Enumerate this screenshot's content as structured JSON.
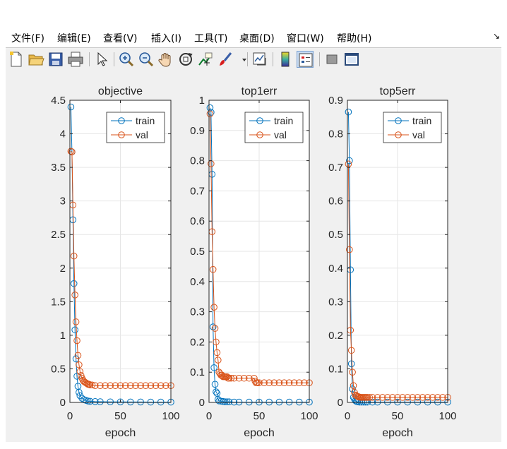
{
  "menu": {
    "items": [
      "文件(F)",
      "编辑(E)",
      "查看(V)",
      "插入(I)",
      "工具(T)",
      "桌面(D)",
      "窗口(W)",
      "帮助(H)"
    ],
    "arrow": "↘"
  },
  "toolbar": {
    "icons": [
      "new-file-icon",
      "open-folder-icon",
      "save-icon",
      "print-icon",
      "pointer-icon",
      "zoom-in-icon",
      "zoom-out-icon",
      "pan-hand-icon",
      "rotate-3d-icon",
      "data-cursor-icon",
      "brush-icon",
      "link-plot-icon",
      "colorbar-icon",
      "legend-icon",
      "hide-plot-tools-icon",
      "show-plot-tools-icon"
    ]
  },
  "colors": {
    "train": "#0072bd",
    "val": "#d95319",
    "axis": "#262626",
    "grid": "#e6e6e6",
    "figure_bg": "#f0f0f0"
  },
  "chart_data": [
    {
      "type": "line",
      "title": "objective",
      "xlabel": "epoch",
      "ylabel": "",
      "xlim": [
        0,
        100
      ],
      "ylim": [
        0,
        4.5
      ],
      "xticks": [
        0,
        50,
        100
      ],
      "yticks": [
        0,
        0.5,
        1,
        1.5,
        2,
        2.5,
        3,
        3.5,
        4,
        4.5
      ],
      "ytick_labels": [
        "0",
        "0.5",
        "1",
        "1.5",
        "2",
        "2.5",
        "3",
        "3.5",
        "4",
        "4.5"
      ],
      "grid": true,
      "legend": "top-right",
      "marker": "circle",
      "series": [
        {
          "name": "train",
          "x": [
            1,
            2,
            3,
            4,
            5,
            6,
            7,
            8,
            9,
            10,
            12,
            14,
            16,
            18,
            20,
            25,
            30,
            40,
            50,
            60,
            70,
            80,
            90,
            100
          ],
          "y": [
            4.4,
            3.73,
            2.72,
            1.77,
            1.08,
            0.65,
            0.39,
            0.24,
            0.15,
            0.1,
            0.06,
            0.04,
            0.03,
            0.02,
            0.016,
            0.012,
            0.01,
            0.008,
            0.007,
            0.006,
            0.006,
            0.005,
            0.005,
            0.005
          ]
        },
        {
          "name": "val",
          "x": [
            1,
            2,
            3,
            4,
            5,
            6,
            7,
            8,
            9,
            10,
            11,
            12,
            13,
            14,
            15,
            16,
            17,
            18,
            19,
            20,
            22,
            25,
            30,
            35,
            40,
            45,
            50,
            55,
            60,
            65,
            70,
            75,
            80,
            85,
            90,
            95,
            100
          ],
          "y": [
            3.74,
            3.73,
            2.94,
            2.18,
            1.6,
            1.2,
            0.92,
            0.7,
            0.56,
            0.46,
            0.4,
            0.36,
            0.33,
            0.31,
            0.3,
            0.29,
            0.28,
            0.27,
            0.27,
            0.26,
            0.26,
            0.25,
            0.25,
            0.25,
            0.25,
            0.25,
            0.25,
            0.25,
            0.25,
            0.25,
            0.25,
            0.25,
            0.25,
            0.25,
            0.25,
            0.25,
            0.25
          ]
        }
      ]
    },
    {
      "type": "line",
      "title": "top1err",
      "xlabel": "epoch",
      "ylabel": "",
      "xlim": [
        0,
        100
      ],
      "ylim": [
        0,
        1
      ],
      "xticks": [
        0,
        50,
        100
      ],
      "yticks": [
        0,
        0.1,
        0.2,
        0.3,
        0.4,
        0.5,
        0.6,
        0.7,
        0.8,
        0.9,
        1
      ],
      "ytick_labels": [
        "0",
        "0.1",
        "0.2",
        "0.3",
        "0.4",
        "0.5",
        "0.6",
        "0.7",
        "0.8",
        "0.9",
        "1"
      ],
      "grid": true,
      "legend": "top-right",
      "marker": "circle",
      "series": [
        {
          "name": "train",
          "x": [
            1,
            2,
            3,
            4,
            5,
            6,
            7,
            8,
            9,
            10,
            12,
            14,
            16,
            18,
            20,
            25,
            30,
            40,
            50,
            60,
            70,
            80,
            90,
            100
          ],
          "y": [
            0.975,
            0.96,
            0.755,
            0.25,
            0.115,
            0.06,
            0.035,
            0.03,
            0.01,
            0.005,
            0.004,
            0.003,
            0.002,
            0.002,
            0.002,
            0.001,
            0.001,
            0.001,
            0.001,
            0.001,
            0.001,
            0.001,
            0.001,
            0.001
          ]
        },
        {
          "name": "val",
          "x": [
            1,
            2,
            3,
            4,
            5,
            6,
            7,
            8,
            9,
            10,
            11,
            12,
            13,
            14,
            15,
            16,
            17,
            18,
            19,
            20,
            22,
            25,
            30,
            35,
            40,
            45,
            46,
            47,
            48,
            50,
            55,
            60,
            65,
            70,
            75,
            80,
            85,
            90,
            95,
            100
          ],
          "y": [
            0.955,
            0.79,
            0.565,
            0.44,
            0.315,
            0.245,
            0.2,
            0.165,
            0.14,
            0.1,
            0.095,
            0.09,
            0.09,
            0.085,
            0.085,
            0.085,
            0.085,
            0.085,
            0.08,
            0.08,
            0.08,
            0.08,
            0.08,
            0.08,
            0.08,
            0.08,
            0.07,
            0.065,
            0.065,
            0.065,
            0.065,
            0.065,
            0.065,
            0.065,
            0.065,
            0.065,
            0.065,
            0.065,
            0.065,
            0.065
          ]
        }
      ]
    },
    {
      "type": "line",
      "title": "top5err",
      "xlabel": "epoch",
      "ylabel": "",
      "xlim": [
        0,
        100
      ],
      "ylim": [
        0,
        0.9
      ],
      "xticks": [
        0,
        50,
        100
      ],
      "yticks": [
        0,
        0.1,
        0.2,
        0.3,
        0.4,
        0.5,
        0.6,
        0.7,
        0.8,
        0.9
      ],
      "ytick_labels": [
        "0",
        "0.1",
        "0.2",
        "0.3",
        "0.4",
        "0.5",
        "0.6",
        "0.7",
        "0.8",
        "0.9"
      ],
      "grid": true,
      "legend": "top-right",
      "marker": "circle",
      "series": [
        {
          "name": "train",
          "x": [
            1,
            2,
            3,
            4,
            5,
            6,
            7,
            8,
            9,
            10,
            12,
            14,
            16,
            18,
            20,
            25,
            30,
            40,
            50,
            60,
            70,
            80,
            90,
            100
          ],
          "y": [
            0.865,
            0.72,
            0.395,
            0.115,
            0.04,
            0.015,
            0.01,
            0.005,
            0.003,
            0.002,
            0.001,
            0.001,
            0.001,
            0.001,
            0.001,
            0.001,
            0.001,
            0.001,
            0.001,
            0.001,
            0.001,
            0.001,
            0.001,
            0.001
          ]
        },
        {
          "name": "val",
          "x": [
            1,
            2,
            3,
            4,
            5,
            6,
            7,
            8,
            9,
            10,
            11,
            12,
            13,
            14,
            15,
            16,
            17,
            18,
            19,
            20,
            22,
            25,
            30,
            35,
            40,
            45,
            50,
            55,
            60,
            65,
            70,
            75,
            80,
            85,
            90,
            95,
            100
          ],
          "y": [
            0.71,
            0.455,
            0.215,
            0.155,
            0.09,
            0.05,
            0.03,
            0.022,
            0.02,
            0.018,
            0.017,
            0.016,
            0.015,
            0.015,
            0.015,
            0.015,
            0.015,
            0.015,
            0.015,
            0.015,
            0.015,
            0.015,
            0.015,
            0.015,
            0.015,
            0.015,
            0.015,
            0.015,
            0.015,
            0.015,
            0.015,
            0.015,
            0.015,
            0.015,
            0.015,
            0.015,
            0.015
          ]
        }
      ]
    }
  ]
}
